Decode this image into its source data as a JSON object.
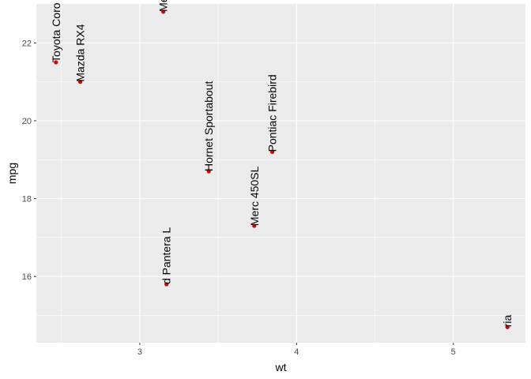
{
  "chart_data": {
    "type": "scatter",
    "xlabel": "wt",
    "ylabel": "mpg",
    "xlim": [
      2.34,
      5.46
    ],
    "ylim": [
      14.3,
      23.0
    ],
    "x_ticks": [
      3,
      4,
      5
    ],
    "x_minor_ticks": [
      2.5,
      3.5,
      4.5
    ],
    "y_ticks": [
      16,
      18,
      20,
      22
    ],
    "y_minor_ticks": [
      15,
      17,
      19,
      21
    ],
    "grid": true,
    "colors": {
      "panel": "#ebebeb",
      "grid": "#ffffff",
      "point": "#e00000",
      "text": "#000000",
      "tick": "#4d4d4d"
    },
    "points": [
      {
        "x": 2.465,
        "y": 21.5,
        "label": "Toyota Coro"
      },
      {
        "x": 2.62,
        "y": 21.0,
        "label": "Mazda RX4"
      },
      {
        "x": 3.15,
        "y": 22.8,
        "label": "Me"
      },
      {
        "x": 3.44,
        "y": 18.7,
        "label": "Hornet Sportabout"
      },
      {
        "x": 3.73,
        "y": 17.3,
        "label": "Merc 450SL"
      },
      {
        "x": 3.845,
        "y": 19.2,
        "label": "Pontiac Firebird"
      },
      {
        "x": 3.17,
        "y": 15.8,
        "label": "d Pantera L"
      },
      {
        "x": 5.345,
        "y": 14.7,
        "label": "ria"
      }
    ]
  }
}
